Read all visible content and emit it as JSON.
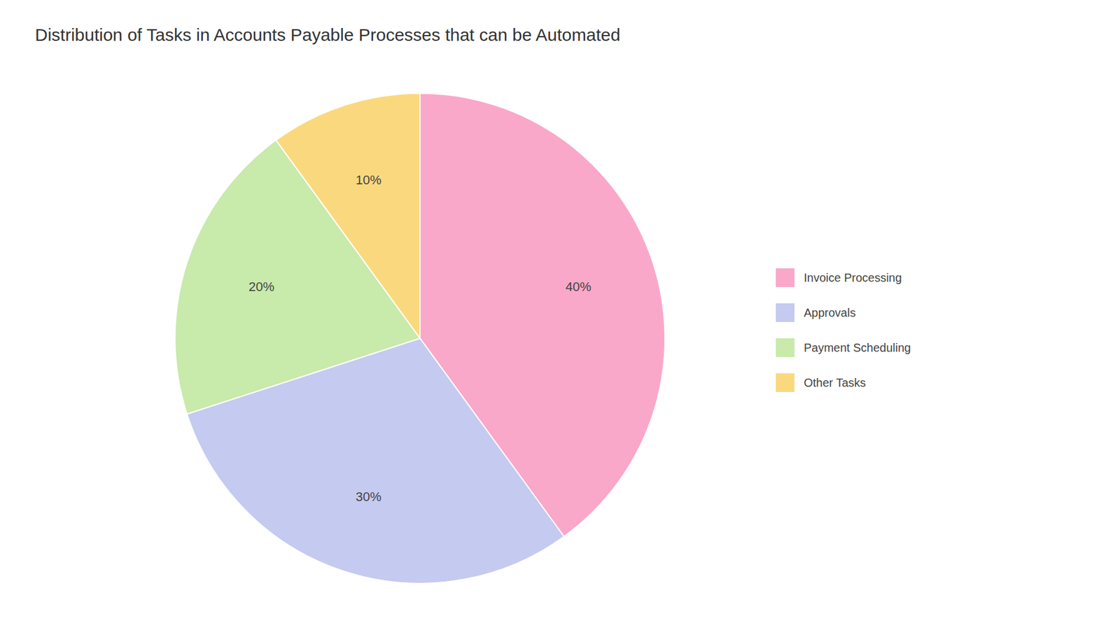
{
  "chart_data": {
    "type": "pie",
    "title": "Distribution of Tasks in Accounts Payable Processes that can be Automated",
    "categories": [
      "Invoice Processing",
      "Approvals",
      "Payment Scheduling",
      "Other Tasks"
    ],
    "values": [
      40,
      30,
      20,
      10
    ],
    "value_labels": [
      "40%",
      "30%",
      "20%",
      "10%"
    ],
    "colors": [
      "#F9A8C9",
      "#C5CAF0",
      "#C8EAAB",
      "#FAD97E"
    ],
    "data_labels": true,
    "legend": "right"
  }
}
